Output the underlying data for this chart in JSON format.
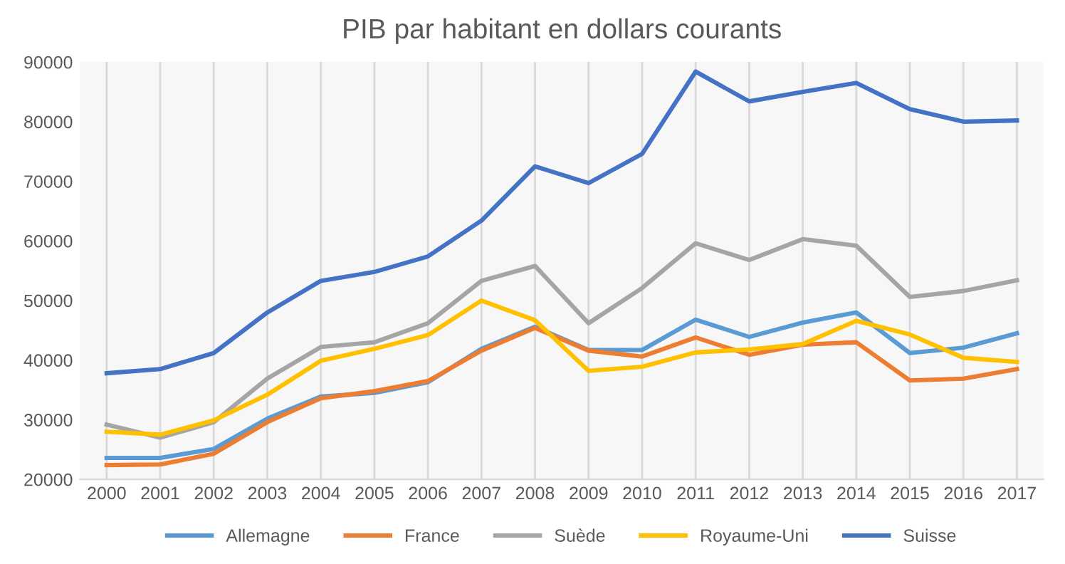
{
  "chart_data": {
    "type": "line",
    "title": "PIB par habitant en dollars courants",
    "categories": [
      "2000",
      "2001",
      "2002",
      "2003",
      "2004",
      "2005",
      "2006",
      "2007",
      "2008",
      "2009",
      "2010",
      "2011",
      "2012",
      "2013",
      "2014",
      "2015",
      "2016",
      "2017"
    ],
    "series": [
      {
        "name": "Allemagne",
        "color": "#5b9bd5",
        "values": [
          23600,
          23600,
          25100,
          30200,
          33900,
          34500,
          36300,
          41900,
          45600,
          41700,
          41700,
          46800,
          43900,
          46300,
          48000,
          41200,
          42100,
          44500
        ]
      },
      {
        "name": "France",
        "color": "#ed7d31",
        "values": [
          22400,
          22500,
          24300,
          29600,
          33600,
          34800,
          36500,
          41600,
          45400,
          41600,
          40600,
          43800,
          40900,
          42600,
          43000,
          36600,
          36900,
          38500
        ]
      },
      {
        "name": "Suède",
        "color": "#a5a5a5",
        "values": [
          29200,
          27000,
          29600,
          36900,
          42200,
          43000,
          46200,
          53300,
          55800,
          46200,
          52100,
          59600,
          56800,
          60300,
          59200,
          50600,
          51600,
          53400
        ]
      },
      {
        "name": "Royaume-Uni",
        "color": "#ffc000",
        "values": [
          28000,
          27500,
          29900,
          34200,
          39900,
          41900,
          44200,
          50000,
          46700,
          38200,
          38900,
          41300,
          41800,
          42700,
          46600,
          44300,
          40400,
          39700
        ]
      },
      {
        "name": "Suisse",
        "color": "#4472c4",
        "values": [
          37800,
          38500,
          41200,
          48000,
          53300,
          54800,
          57400,
          63400,
          72500,
          69700,
          74600,
          88400,
          83400,
          85000,
          86500,
          82100,
          80000,
          80200
        ]
      }
    ],
    "ylim": [
      20000,
      90000
    ],
    "yticks": [
      20000,
      30000,
      40000,
      50000,
      60000,
      70000,
      80000,
      90000
    ],
    "grid": "x",
    "legend": "bottom",
    "marker": "none",
    "line_style": "solid"
  }
}
